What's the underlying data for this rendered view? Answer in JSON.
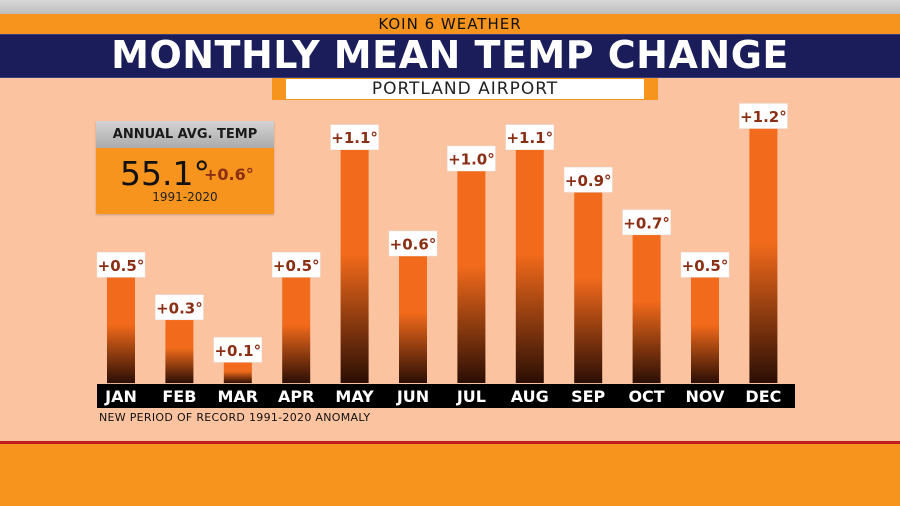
{
  "header": {
    "station": "KOIN 6 WEATHER",
    "title": "MONTHLY MEAN TEMP CHANGE",
    "subtitle": "PORTLAND AIRPORT"
  },
  "annual_box": {
    "heading": "ANNUAL AVG. TEMP",
    "temp": "55.1°",
    "delta": "+0.6°",
    "period": "1991-2020"
  },
  "footnote": "NEW PERIOD OF RECORD 1991-2020 ANOMALY",
  "colors": {
    "bar_top": "#f26a1b",
    "bar_bottom": "#2b0e04",
    "label_text": "#8b2f14",
    "accent": "#f7941d",
    "title_bg": "#1b1d5a"
  },
  "chart_data": {
    "type": "bar",
    "title": "MONTHLY MEAN TEMP CHANGE",
    "categories": [
      "JAN",
      "FEB",
      "MAR",
      "APR",
      "MAY",
      "JUN",
      "JUL",
      "AUG",
      "SEP",
      "OCT",
      "NOV",
      "DEC"
    ],
    "values": [
      0.5,
      0.3,
      0.1,
      0.5,
      1.1,
      0.6,
      1.0,
      1.1,
      0.9,
      0.7,
      0.5,
      1.2
    ],
    "data_labels": [
      "+0.5°",
      "+0.3°",
      "+0.1°",
      "+0.5°",
      "+1.1°",
      "+0.6°",
      "+1.0°",
      "+1.1°",
      "+0.9°",
      "+0.7°",
      "+0.5°",
      "+1.2°"
    ],
    "unit": "°F",
    "ylim": [
      0,
      1.2
    ],
    "xlabel": "",
    "ylabel": "",
    "grid": false,
    "legend": "none"
  }
}
